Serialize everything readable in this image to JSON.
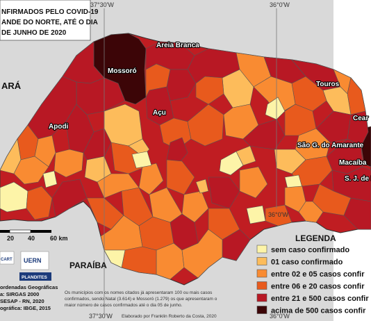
{
  "title_lines": [
    "NFIRMADOS PELO COVID-19",
    "ANDE DO NORTE, ATÉ O DIA",
    "DE JUNHO DE 2020"
  ],
  "graticule": {
    "top_left": "37°30'W",
    "top_right": "36°0'W",
    "bottom_left": "37°30'W",
    "bottom_right": "36°0'W",
    "mid_right": "36°0'W"
  },
  "neighbors": {
    "west": "ARÁ",
    "south": "PARAÍBA"
  },
  "cities": [
    "Areia Branca",
    "Mossoró",
    "Touros",
    "Açu",
    "Apodi",
    "Cear",
    "São G. do Amarante",
    "Macaíba",
    "S. J. de M"
  ],
  "scale": {
    "labels": [
      "20",
      "40",
      "60 km"
    ]
  },
  "legend": {
    "title": "LEGENDA",
    "items": [
      {
        "label": "sem caso confirmado",
        "color": "#fdf4a8"
      },
      {
        "label": "01 caso confirmado",
        "color": "#fdbc5b"
      },
      {
        "label": "entre 02 e 05 casos confir",
        "color": "#f98b32"
      },
      {
        "label": "entre 06 e 20 casos confir",
        "color": "#e85a1d"
      },
      {
        "label": "entre 21 e 500 casos confir",
        "color": "#b81824"
      },
      {
        "label": "acima de 500 casos confir",
        "color": "#3c0507"
      }
    ]
  },
  "logos": {
    "uern": "UERN",
    "plandites": "PLANDITES",
    "cart": "CART"
  },
  "credits": {
    "lines": [
      "ordenadas Geográficas",
      "a: SIRGAS 2000",
      "SESAP - RN, 2020",
      "ográfica: IBGE, 2015"
    ],
    "note_lines": [
      "Os municípios com os nomes citados já apresentaram 100 ou mais casos",
      "confirmados, sendo Natal (3.614) e Mossoró (1.279) os que apresentaram o",
      "maior número de casos confirmados até o dia 05 de junho."
    ],
    "author": "Elaborado por Franklin Roberto da Costa, 2020"
  }
}
